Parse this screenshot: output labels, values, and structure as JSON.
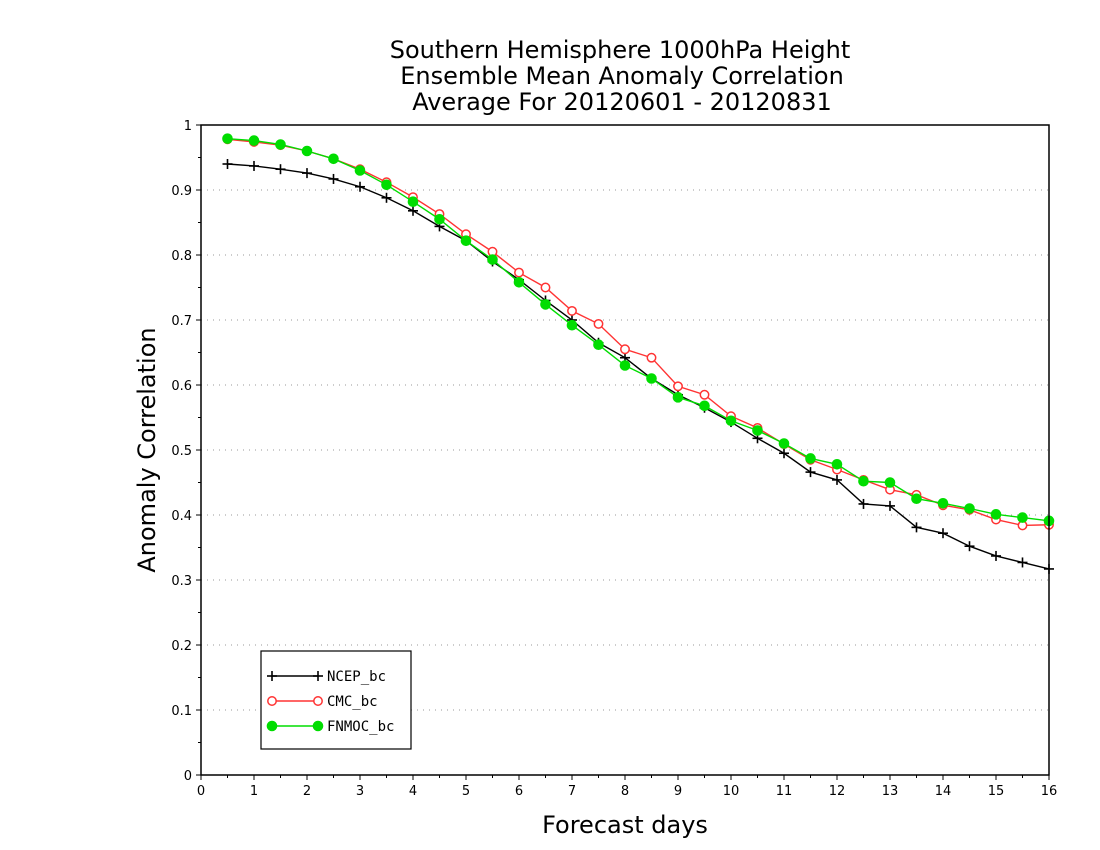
{
  "chart_data": {
    "type": "line",
    "title": [
      "Southern Hemisphere 1000hPa Height",
      "Ensemble Mean Anomaly Correlation",
      "Average For 20120601 - 20120831"
    ],
    "xlabel": "Forecast days",
    "ylabel": "Anomaly Correlation",
    "xlim": [
      0,
      16
    ],
    "ylim": [
      0,
      1
    ],
    "xticks": [
      "0",
      "1",
      "2",
      "3",
      "4",
      "5",
      "6",
      "7",
      "8",
      "9",
      "10",
      "11",
      "12",
      "13",
      "14",
      "15",
      "16"
    ],
    "yticks": [
      "0",
      "0.1",
      "0.2",
      "0.3",
      "0.4",
      "0.5",
      "0.6",
      "0.7",
      "0.8",
      "0.9",
      "1"
    ],
    "grid": "horizontal dotted",
    "legend_position": "bottom-left",
    "x": [
      0.5,
      1,
      1.5,
      2,
      2.5,
      3,
      3.5,
      4,
      4.5,
      5,
      5.5,
      6,
      6.5,
      7,
      7.5,
      8,
      8.5,
      9,
      9.5,
      10,
      10.5,
      11,
      11.5,
      12,
      12.5,
      13,
      13.5,
      14,
      14.5,
      15,
      15.5,
      16
    ],
    "series": [
      {
        "name": "NCEP_bc",
        "color": "#000000",
        "marker": "plus",
        "values": [
          0.94,
          0.937,
          0.932,
          0.926,
          0.917,
          0.905,
          0.888,
          0.868,
          0.844,
          0.822,
          0.79,
          0.762,
          0.73,
          0.7,
          0.665,
          0.642,
          0.61,
          0.585,
          0.565,
          0.543,
          0.518,
          0.495,
          0.466,
          0.454,
          0.417,
          0.414,
          0.381,
          0.372,
          0.352,
          0.337,
          0.327,
          0.317
        ]
      },
      {
        "name": "CMC_bc",
        "color": "#ff3333",
        "marker": "open-circle",
        "values": [
          0.978,
          0.974,
          0.969,
          0.96,
          0.948,
          0.932,
          0.912,
          0.889,
          0.863,
          0.832,
          0.805,
          0.773,
          0.75,
          0.714,
          0.694,
          0.655,
          0.642,
          0.598,
          0.585,
          0.552,
          0.534,
          0.509,
          0.485,
          0.47,
          0.454,
          0.439,
          0.431,
          0.415,
          0.408,
          0.393,
          0.384,
          0.385
        ]
      },
      {
        "name": "FNMOC_bc",
        "color": "#00dd00",
        "marker": "filled-circle",
        "values": [
          0.979,
          0.976,
          0.97,
          0.96,
          0.948,
          0.93,
          0.908,
          0.882,
          0.855,
          0.822,
          0.793,
          0.758,
          0.724,
          0.692,
          0.662,
          0.63,
          0.61,
          0.581,
          0.568,
          0.545,
          0.53,
          0.51,
          0.487,
          0.478,
          0.452,
          0.45,
          0.425,
          0.418,
          0.41,
          0.401,
          0.396,
          0.391
        ]
      }
    ]
  }
}
